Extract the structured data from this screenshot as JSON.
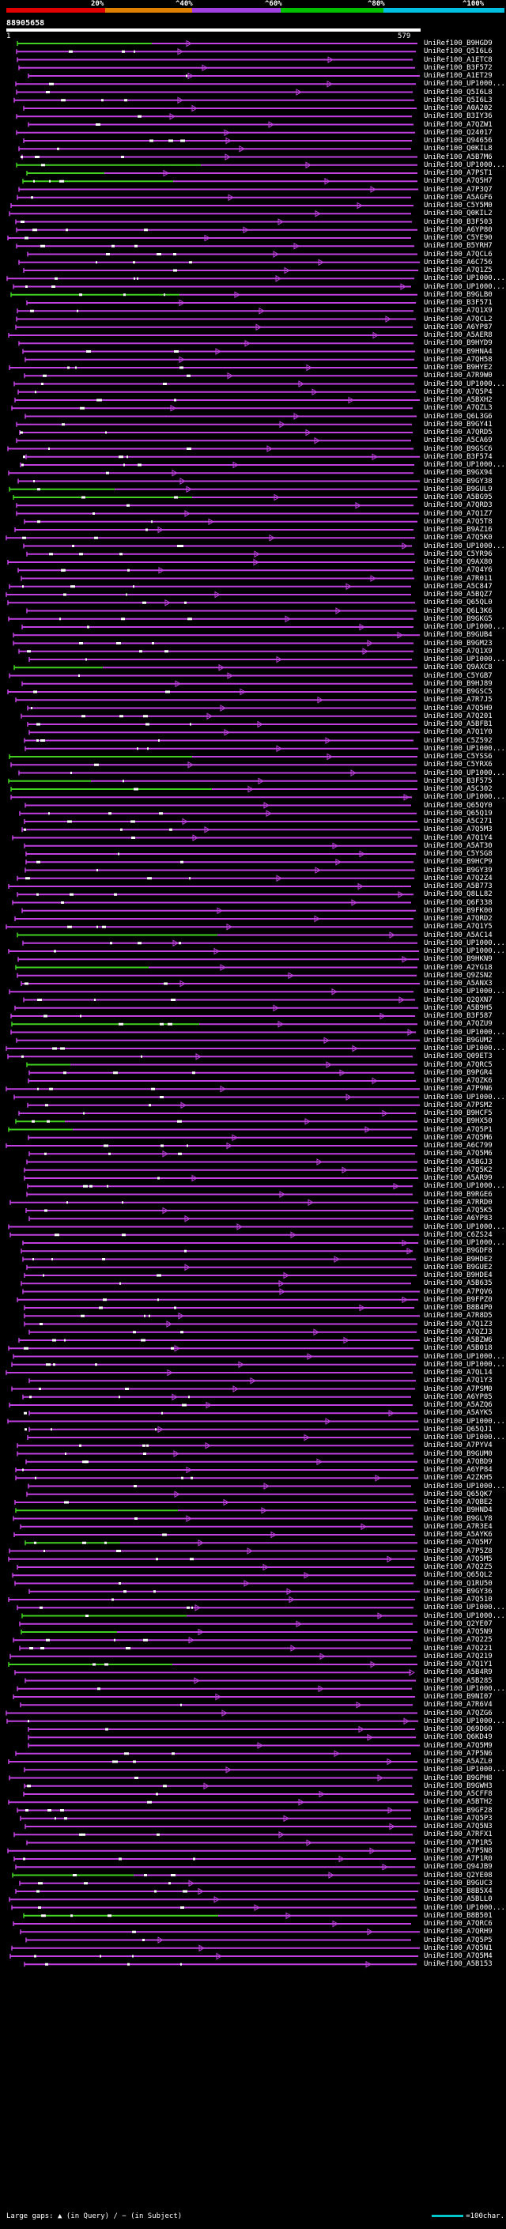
{
  "scale": {
    "labels": [
      "20%",
      "^40%",
      "^60%",
      "^80%",
      "^100%"
    ],
    "colors": [
      "#e00000",
      "#e08000",
      "#a040e0",
      "#00c000",
      "#00c0e0"
    ]
  },
  "query": {
    "id": "88905658",
    "start": "1",
    "end": "579"
  },
  "hit_colors": {
    "high": "#40d020",
    "mid": "#c040e0",
    "mark": "#ffffff"
  },
  "hits": [
    "UniRef100_B9HGD9",
    "UniRef100_Q5I6L6",
    "UniRef100_A1ETC8",
    "UniRef100_B3F572",
    "UniRef100_A1ET29",
    "UniRef100_UP1000...",
    "UniRef100_Q5I6L8",
    "UniRef100_Q5I6L3",
    "UniRef100_A0A202",
    "UniRef100_B3IY36",
    "UniRef100_A7QZW1",
    "UniRef100_Q24017",
    "UniRef100_Q94656",
    "UniRef100_Q0KIL8",
    "UniRef100_A5B7M6",
    "UniRef100_UP1000...",
    "UniRef100_A7PST1",
    "UniRef100_A7Q5H7",
    "UniRef100_A7P3Q7",
    "UniRef100_A5AGF6",
    "UniRef100_C5Y5M0",
    "UniRef100_Q0KIL2",
    "UniRef100_B3F503",
    "UniRef100_A6YP80",
    "UniRef100_C5YE90",
    "UniRef100_B5YRH7",
    "UniRef100_A7QCL6",
    "UniRef100_A6C756",
    "UniRef100_A7Q1Z5",
    "UniRef100_UP1000...",
    "UniRef100_UP1000...",
    "UniRef100_B9GLB0",
    "UniRef100_B3F571",
    "UniRef100_A7Q1X9",
    "UniRef100_A7QCL2",
    "UniRef100_A6YP87",
    "UniRef100_A5AER8",
    "UniRef100_B9HYD9",
    "UniRef100_B9HNA4",
    "UniRef100_A7QH58",
    "UniRef100_B9HYE2",
    "UniRef100_A7R9W0",
    "UniRef100_UP1000...",
    "UniRef100_A7Q5P4",
    "UniRef100_A5BXH2",
    "UniRef100_A7QZL3",
    "UniRef100_Q6L3G6",
    "UniRef100_B9GY41",
    "UniRef100_A7QRD5",
    "UniRef100_A5CA69",
    "UniRef100_B9GSC6",
    "UniRef100_B3F574",
    "UniRef100_UP1000...",
    "UniRef100_B9GX94",
    "UniRef100_B9GY38",
    "UniRef100_B9GUL9",
    "UniRef100_A5BG95",
    "UniRef100_A7QRD3",
    "UniRef100_A7Q1Z7",
    "UniRef100_A7Q5T8",
    "UniRef100_B9AZ16",
    "UniRef100_A7Q5K0",
    "UniRef100_UP1000...",
    "UniRef100_C5YR96",
    "UniRef100_Q9AX80",
    "UniRef100_A7Q4Y6",
    "UniRef100_A7R011",
    "UniRef100_A5C847",
    "UniRef100_A5BQZ7",
    "UniRef100_Q65QL0",
    "UniRef100_Q6L3K6",
    "UniRef100_B9GKG5",
    "UniRef100_UP1000...",
    "UniRef100_B9GUB4",
    "UniRef100_B9GM23",
    "UniRef100_A7Q1X9",
    "UniRef100_UP1000...",
    "UniRef100_Q9AXC8",
    "UniRef100_C5YGB7",
    "UniRef100_B9HJ89",
    "UniRef100_B9GSC5",
    "UniRef100_A7R7J5",
    "UniRef100_A7Q5H9",
    "UniRef100_A7Q201",
    "UniRef100_A5BFB1",
    "UniRef100_A7Q1Y0",
    "UniRef100_C5Z592",
    "UniRef100_UP1000...",
    "UniRef100_C5YSS6",
    "UniRef100_C5YRX6",
    "UniRef100_UP1000...",
    "UniRef100_B3F575",
    "UniRef100_A5C302",
    "UniRef100_UP1000...",
    "UniRef100_Q65QY0",
    "UniRef100_Q65Q19",
    "UniRef100_A5C271",
    "UniRef100_A7Q5M3",
    "UniRef100_A7Q1Y4",
    "UniRef100_A5AT30",
    "UniRef100_C5YSG8",
    "UniRef100_B9HCP9",
    "UniRef100_B9GY39",
    "UniRef100_A7Q2Z4",
    "UniRef100_A5B773",
    "UniRef100_Q8LL82",
    "UniRef100_Q6F338",
    "UniRef100_B9FK00",
    "UniRef100_A7QRD2",
    "UniRef100_A7Q1Y5",
    "UniRef100_A5AC14",
    "UniRef100_UP1000...",
    "UniRef100_UP1000...",
    "UniRef100_B9HKN9",
    "UniRef100_A2YG18",
    "UniRef100_Q9ZSN2",
    "UniRef100_A5ANX3",
    "UniRef100_UP1000...",
    "UniRef100_Q2QXN7",
    "UniRef100_A5B9H5",
    "UniRef100_B3F587",
    "UniRef100_A7QZU9",
    "UniRef100_UP1000...",
    "UniRef100_B9GUM2",
    "UniRef100_UP1000...",
    "UniRef100_Q09ET3",
    "UniRef100_A7QRC5",
    "UniRef100_B9PGR4",
    "UniRef100_A7QZK6",
    "UniRef100_A7P9N6",
    "UniRef100_UP1000...",
    "UniRef100_A7PSM2",
    "UniRef100_B9HCF5",
    "UniRef100_B9HX50",
    "UniRef100_A7Q5P1",
    "UniRef100_A7Q5M6",
    "UniRef100_A6C799",
    "UniRef100_A7Q5M6",
    "UniRef100_A5BGJ3",
    "UniRef100_A7Q5K2",
    "UniRef100_A5AR99",
    "UniRef100_UP1000...",
    "UniRef100_B9RGE6",
    "UniRef100_A7RRD0",
    "UniRef100_A7Q5K5",
    "UniRef100_A6YP83",
    "UniRef100_UP1000...",
    "UniRef100_C6ZS24",
    "UniRef100_UP1000...",
    "UniRef100_B9GDF8",
    "UniRef100_B9HDE2",
    "UniRef100_B9GUE2",
    "UniRef100_B9HDE4",
    "UniRef100_A5B635",
    "UniRef100_A7PQV6",
    "UniRef100_B9FPZ0",
    "UniRef100_B8B4P0",
    "UniRef100_A7R8D5",
    "UniRef100_A7Q1Z3",
    "UniRef100_A7QZJ3",
    "UniRef100_A5BZW6",
    "UniRef100_A5B018",
    "UniRef100_UP1000...",
    "UniRef100_UP1000...",
    "UniRef100_A7QL14",
    "UniRef100_A7Q1Y3",
    "UniRef100_A7PSM0",
    "UniRef100_A6YP85",
    "UniRef100_A5AZQ6",
    "UniRef100_A5AYK5",
    "UniRef100_UP1000...",
    "UniRef100_Q65QJ1",
    "UniRef100_UP1000...",
    "UniRef100_A7PYV4",
    "UniRef100_B9GUM0",
    "UniRef100_A7QBD9",
    "UniRef100_A6YP84",
    "UniRef100_A2ZKH5",
    "UniRef100_UP1000...",
    "UniRef100_Q65QK7",
    "UniRef100_A7QBE2",
    "UniRef100_B9HND4",
    "UniRef100_B9GLY8",
    "UniRef100_A7R3E4",
    "UniRef100_A5AYK6",
    "UniRef100_A7Q5M7",
    "UniRef100_A7P5Z8",
    "UniRef100_A7Q5M5",
    "UniRef100_A7Q2Z5",
    "UniRef100_Q65QL2",
    "UniRef100_Q1RU50",
    "UniRef100_B9GY36",
    "UniRef100_A7Q510",
    "UniRef100_UP1000...",
    "UniRef100_UP1000...",
    "UniRef100_Q2YE07",
    "UniRef100_A7Q5N9",
    "UniRef100_A7Q225",
    "UniRef100_A7Q221",
    "UniRef100_A7Q219",
    "UniRef100_A7Q1Y1",
    "UniRef100_A5B4R9",
    "UniRef100_A5B285",
    "UniRef100_UP1000...",
    "UniRef100_B9NI07",
    "UniRef100_A7R6V4",
    "UniRef100_A7QZG6",
    "UniRef100_UP1000...",
    "UniRef100_Q69D60",
    "UniRef100_Q6KD49",
    "UniRef100_A7Q5M9",
    "UniRef100_A7P5N6",
    "UniRef100_A5AZL0",
    "UniRef100_UP1000...",
    "UniRef100_B9GPH8",
    "UniRef100_B9GWH3",
    "UniRef100_A5CFF8",
    "UniRef100_A5BTH2",
    "UniRef100_B9GF28",
    "UniRef100_A7Q5P3",
    "UniRef100_A7Q5N3",
    "UniRef100_A7RFX1",
    "UniRef100_A7P1R5",
    "UniRef100_A7P5N8",
    "UniRef100_A7P1R0",
    "UniRef100_Q94JB9",
    "UniRef100_Q2YE08",
    "UniRef100_B9GUC3",
    "UniRef100_B8B5X4",
    "UniRef100_A5BLL0",
    "UniRef100_UP1000...",
    "UniRef100_B8B501",
    "UniRef100_A7QRC6",
    "UniRef100_A7QRH9",
    "UniRef100_A7Q5P5",
    "UniRef100_A7Q5N1",
    "UniRef100_A7Q5M4",
    "UniRef100_A5B153"
  ],
  "legend": {
    "left": "Large gaps: ▲ (in Query) / − (in Subject)",
    "right": "=100char."
  }
}
